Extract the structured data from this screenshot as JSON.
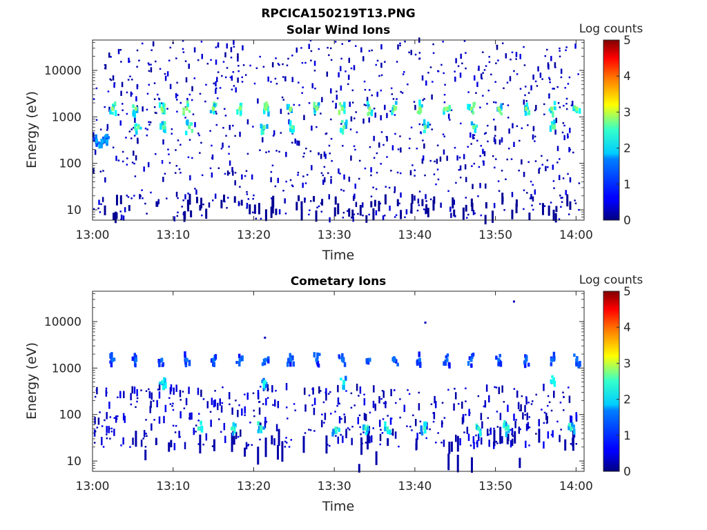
{
  "figure_title": "RPCICA150219T13.PNG",
  "colorbar": {
    "label": "Log counts",
    "ticks": [
      "0",
      "1",
      "2",
      "3",
      "4",
      "5"
    ],
    "range": [
      0,
      5
    ],
    "colormap": "jet"
  },
  "chart_data": [
    {
      "type": "heatmap",
      "title": "Solar Wind Ions",
      "xlabel": "Time",
      "ylabel": "Energy (eV)",
      "x_ticks": [
        "13:00",
        "13:10",
        "13:20",
        "13:30",
        "13:40",
        "13:50",
        "14:00"
      ],
      "y_ticks": [
        "10",
        "100",
        "1000",
        "10000"
      ],
      "y_scale": "log",
      "ylim": [
        6,
        45000
      ],
      "xlim_minutes": [
        0,
        61
      ],
      "scan_period_minutes": 3.2,
      "series": [
        {
          "energy_eV": 1500,
          "log_counts": 2.6,
          "times_min": [
            2.5,
            5.4,
            8.6,
            11.7,
            15.0,
            18.3,
            21.5,
            24.6,
            27.8,
            31.0,
            34.4,
            37.5,
            40.6,
            44.0,
            47.0,
            50.4,
            53.8,
            57.0,
            60.1
          ]
        },
        {
          "energy_eV": 600,
          "log_counts": 2.4,
          "times_min": [
            5.7,
            8.8,
            12.0,
            21.3,
            24.8,
            31.2,
            41.3,
            47.3,
            57.2
          ]
        },
        {
          "energy_eV": 300,
          "log_counts": 1.5,
          "times_min": [
            0.5,
            1.2,
            1.8
          ]
        }
      ]
    },
    {
      "type": "heatmap",
      "title": "Cometary Ions",
      "xlabel": "Time",
      "ylabel": "Energy (eV)",
      "x_ticks": [
        "13:00",
        "13:10",
        "13:20",
        "13:30",
        "13:40",
        "13:50",
        "14:00"
      ],
      "y_ticks": [
        "10",
        "100",
        "1000",
        "10000"
      ],
      "y_scale": "log",
      "ylim": [
        6,
        45000
      ],
      "xlim_minutes": [
        0,
        61
      ],
      "series": [
        {
          "energy_eV": 1500,
          "log_counts": 1.2,
          "times_min": [
            2.5,
            5.4,
            8.6,
            11.7,
            15.0,
            18.3,
            21.5,
            24.6,
            27.8,
            31.0,
            34.4,
            37.5,
            40.6,
            44.0,
            47.0,
            50.4,
            53.8,
            57.0,
            60.1
          ]
        },
        {
          "energy_eV": 500,
          "log_counts": 2.0,
          "times_min": [
            8.7,
            21.4,
            31.2,
            57.2
          ]
        },
        {
          "energy_eV": 50,
          "log_counts": 2.2,
          "times_min": [
            13.2,
            17.4,
            20.9,
            30.2,
            33.9,
            36.6,
            41.2,
            47.9,
            51.3,
            59.4
          ]
        }
      ]
    }
  ]
}
